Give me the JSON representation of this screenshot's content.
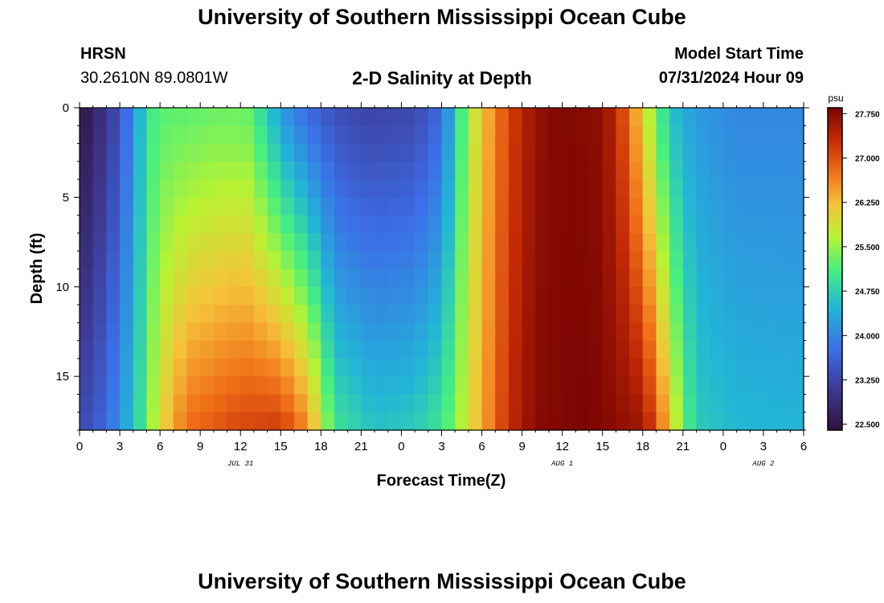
{
  "header": {
    "title": "University of Southern Mississippi Ocean Cube",
    "station": "HRSN",
    "coordinates": "30.2610N  89.0801W",
    "subtitle": "2-D Salinity at Depth",
    "model_start_label": "Model Start Time",
    "model_start_value": "07/31/2024 Hour 09"
  },
  "footer": {
    "title": "University of Southern Mississippi Ocean Cube"
  },
  "chart_data": {
    "type": "heatmap",
    "title": "2-D Salinity at Depth",
    "xlabel": "Forecast Time(Z)",
    "ylabel": "Depth (ft)",
    "x_hours": [
      0,
      54
    ],
    "y_depth": [
      0,
      18
    ],
    "x_ticks": [
      "0",
      "3",
      "6",
      "9",
      "12",
      "15",
      "18",
      "21",
      "0",
      "3",
      "6",
      "9",
      "12",
      "15",
      "18",
      "21",
      "0",
      "3",
      "6"
    ],
    "y_ticks": [
      "0",
      "5",
      "10",
      "15"
    ],
    "y_tick_values": [
      0,
      5,
      10,
      15
    ],
    "date_labels": [
      {
        "text": "JUL 31",
        "hour": 12
      },
      {
        "text": "AUG 1",
        "hour": 36
      },
      {
        "text": "AUG 2",
        "hour": 51
      }
    ],
    "colorbar": {
      "unit": "psu",
      "min": 22.4,
      "max": 27.85,
      "tick_labels": [
        "27.750",
        "27.000",
        "26.250",
        "25.500",
        "24.750",
        "24.000",
        "23.250",
        "22.500"
      ],
      "tick_values": [
        27.75,
        27.0,
        26.25,
        25.5,
        24.75,
        24.0,
        23.25,
        22.5
      ]
    },
    "grid": false,
    "legend": "right-colorbar"
  }
}
